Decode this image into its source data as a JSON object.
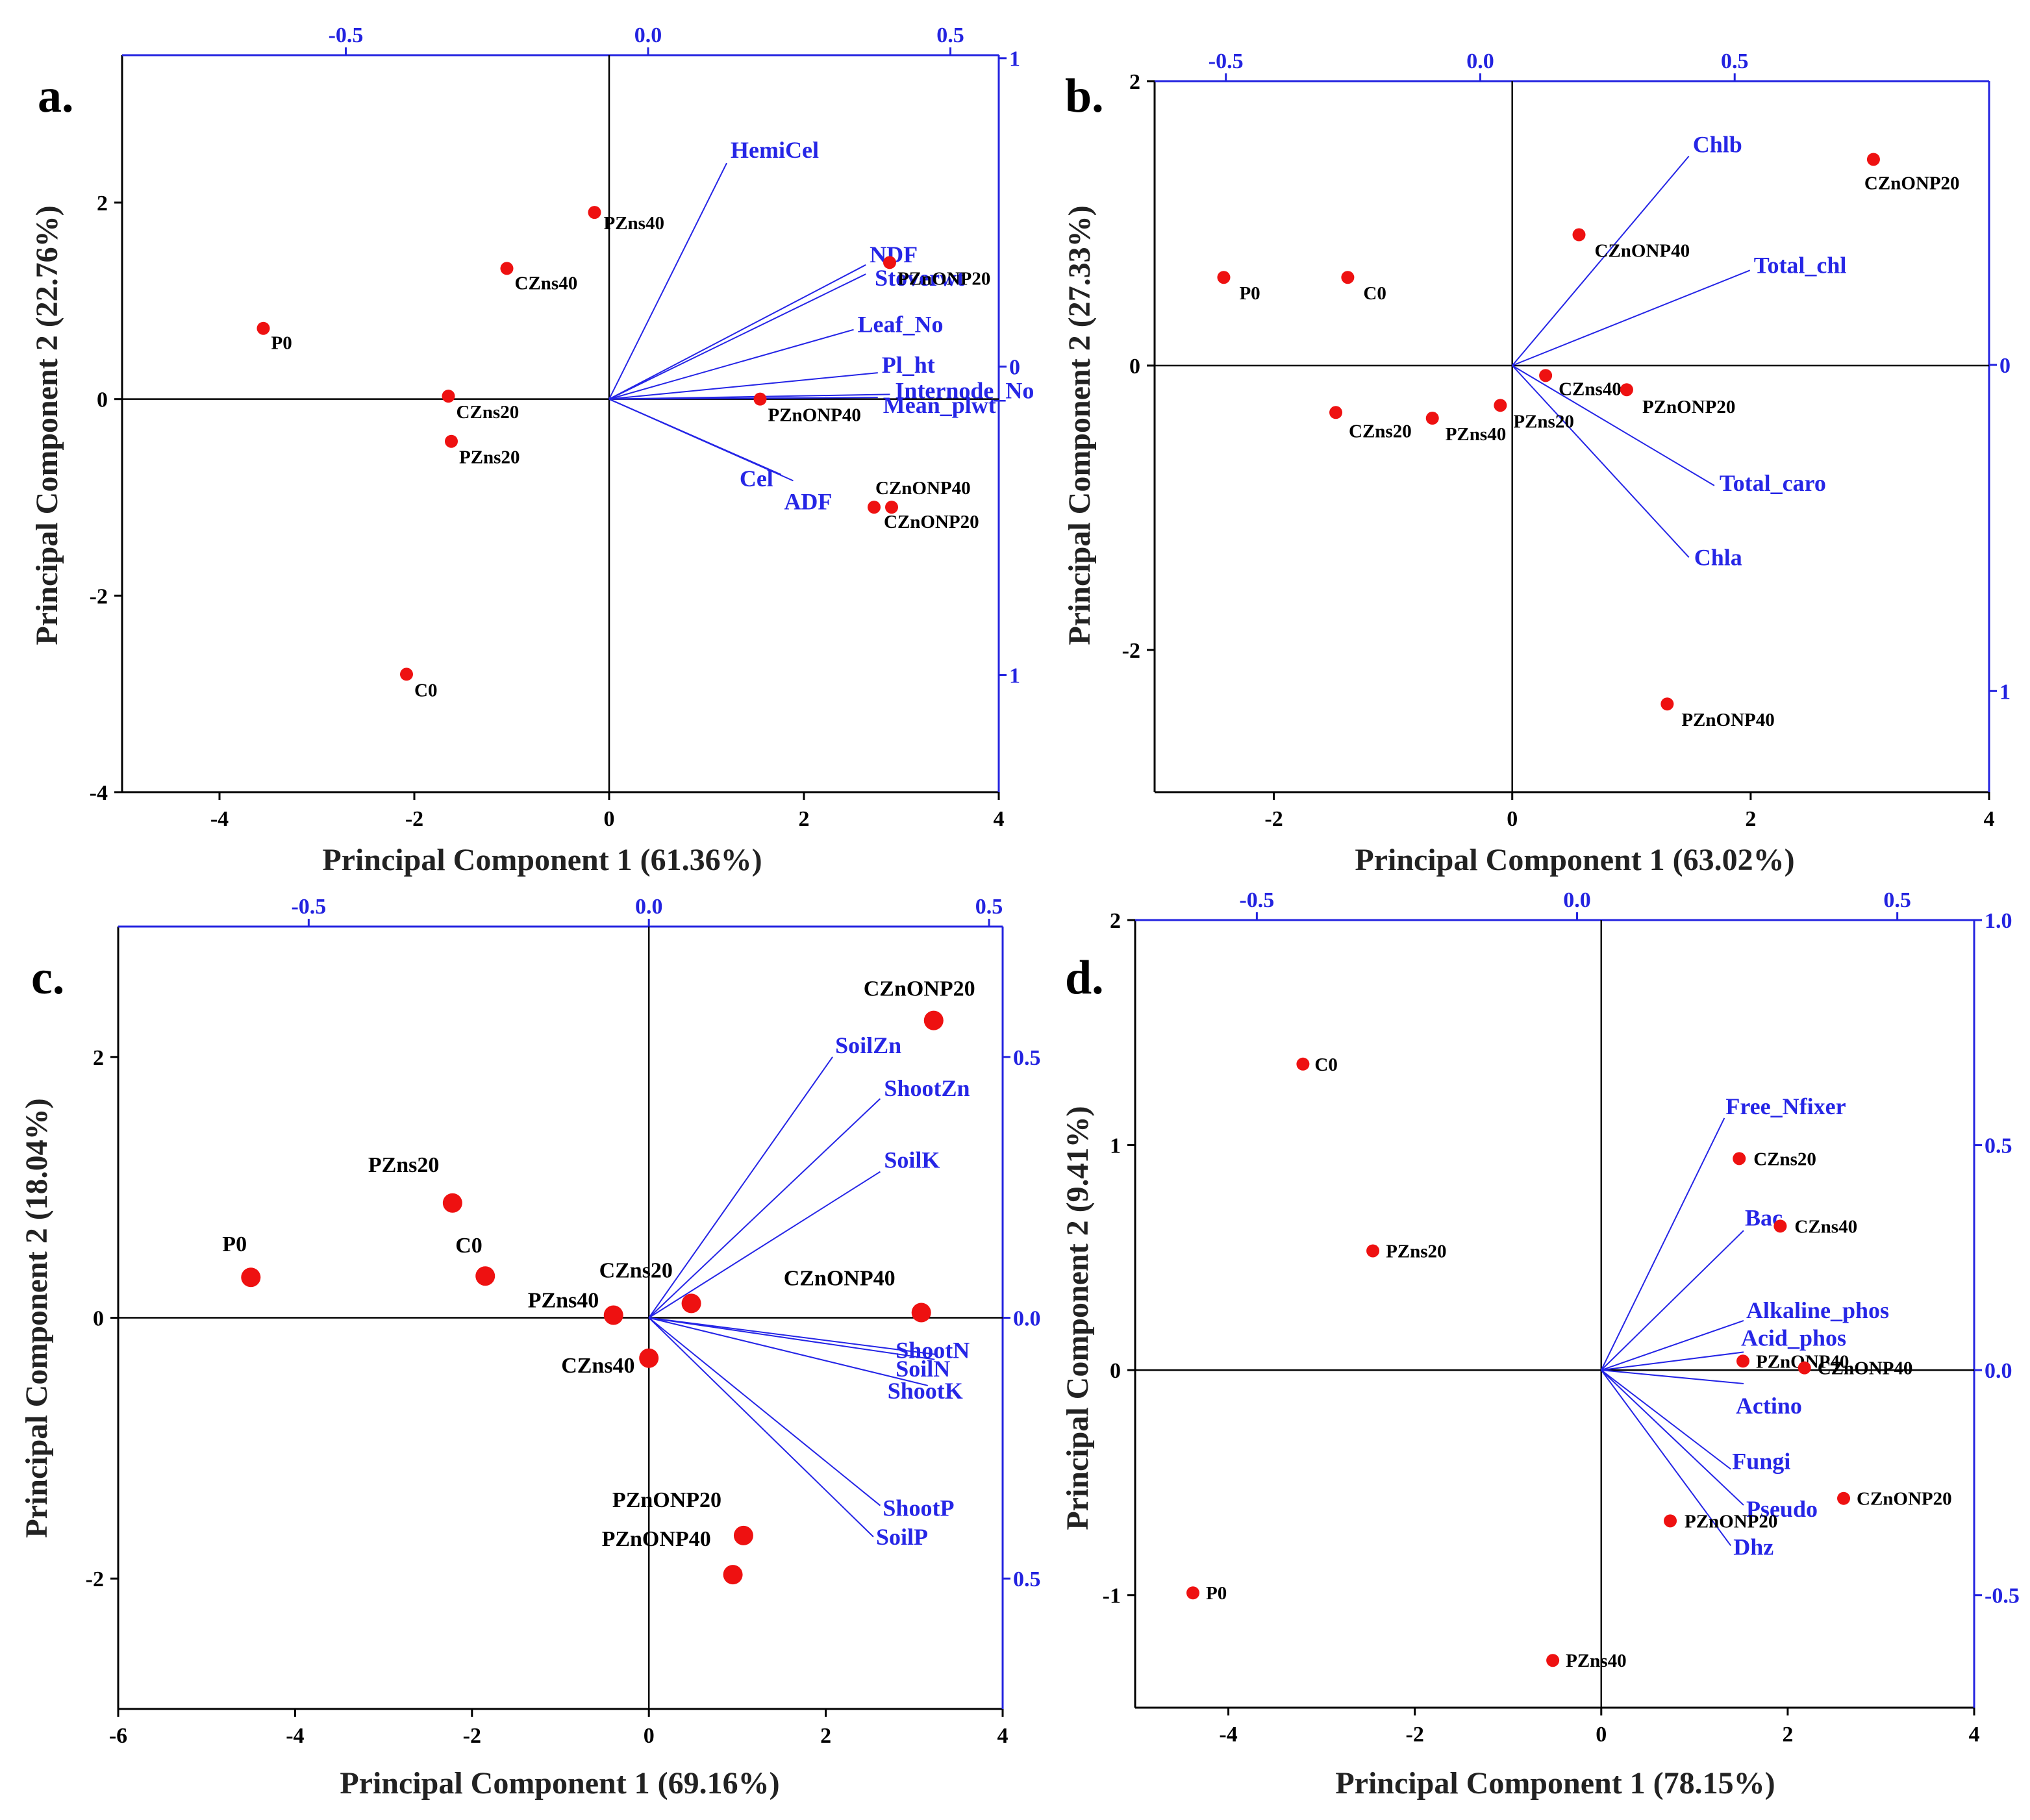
{
  "figure": {
    "colors": {
      "point": "#ee1111",
      "vector": "#2424e6",
      "axis": "#000000",
      "secondary_axis": "#2323e0"
    }
  },
  "chart_data": [
    {
      "type": "scatter",
      "kind": "pca-biplot",
      "panel": "a.",
      "xlabel": "Principal Component 1 (61.36%)",
      "ylabel": "Principal Component 2 (22.76%)",
      "xlim": [
        -5,
        4
      ],
      "ylim": [
        -4,
        3.5
      ],
      "xticks": [
        -4,
        -2,
        0,
        2,
        4
      ],
      "yticks": [
        -4,
        -2,
        0,
        2
      ],
      "top_axis": {
        "lim": [
          -0.87,
          0.58
        ],
        "ticks": [
          -0.5,
          0.0,
          0.5
        ],
        "labels": [
          "-0.5",
          "0.0",
          "0.5"
        ]
      },
      "right_axis": {
        "lim": [
          -1.38,
          1.01
        ],
        "ticks": [
          1,
          0,
          -1
        ],
        "labels": [
          "1",
          "0",
          "1"
        ]
      },
      "point_size": "small",
      "points": [
        {
          "label": "PZns40",
          "x": -0.15,
          "y": 1.9
        },
        {
          "label": "CZns40",
          "x": -1.05,
          "y": 1.33
        },
        {
          "label": "P0",
          "x": -3.55,
          "y": 0.72
        },
        {
          "label": "CZns20",
          "x": -1.65,
          "y": 0.03
        },
        {
          "label": "PZns20",
          "x": -1.62,
          "y": -0.43
        },
        {
          "label": "C0",
          "x": -2.08,
          "y": -2.8
        },
        {
          "label": "PZnONP20",
          "x": 2.88,
          "y": 1.39
        },
        {
          "label": "PZnONP40",
          "x": 1.55,
          "y": 0.0
        },
        {
          "label": "CZnONP40",
          "x": 2.72,
          "y": -1.1
        },
        {
          "label": "CZnONP20",
          "x": 2.9,
          "y": -1.1
        }
      ],
      "loadings": [
        {
          "label": "HemiCel",
          "x": 0.13,
          "y": 0.66
        },
        {
          "label": "NDF",
          "x": 0.36,
          "y": 0.33
        },
        {
          "label": "Stoverwt",
          "x": 0.36,
          "y": 0.3
        },
        {
          "label": "Leaf_No",
          "x": 0.34,
          "y": 0.12
        },
        {
          "label": "Pl_ht",
          "x": 0.38,
          "y": -0.02
        },
        {
          "label": "Internode_No",
          "x": 0.4,
          "y": -0.09
        },
        {
          "label": "Mean_plwt",
          "x": 0.38,
          "y": -0.1
        },
        {
          "label": "Cel",
          "x": 0.22,
          "y": -0.35
        },
        {
          "label": "ADF",
          "x": 0.24,
          "y": -0.37
        }
      ]
    },
    {
      "type": "scatter",
      "kind": "pca-biplot",
      "panel": "b.",
      "xlabel": "Principal Component 1 (63.02%)",
      "ylabel": "Principal Component 2 (27.33%)",
      "xlim": [
        -3,
        4
      ],
      "ylim": [
        -3,
        2
      ],
      "xticks": [
        -2,
        0,
        2,
        4
      ],
      "yticks": [
        -2,
        0,
        2
      ],
      "top_axis": {
        "lim": [
          -0.64,
          1.0
        ],
        "ticks": [
          -0.5,
          0.0,
          0.5
        ],
        "labels": [
          "-0.5",
          "0.0",
          "0.5"
        ]
      },
      "right_axis": {
        "lim": [
          -1.31,
          0.87
        ],
        "ticks": [
          0,
          -1
        ],
        "labels": [
          "0",
          "1"
        ]
      },
      "point_size": "small",
      "points": [
        {
          "label": "CZnONP20",
          "x": 3.03,
          "y": 1.45
        },
        {
          "label": "CZnONP40",
          "x": 0.56,
          "y": 0.92
        },
        {
          "label": "P0",
          "x": -2.42,
          "y": 0.62
        },
        {
          "label": "C0",
          "x": -1.38,
          "y": 0.62
        },
        {
          "label": "CZns40",
          "x": 0.28,
          "y": -0.07
        },
        {
          "label": "PZnONP20",
          "x": 0.96,
          "y": -0.17
        },
        {
          "label": "PZns20",
          "x": -0.1,
          "y": -0.28
        },
        {
          "label": "CZns20",
          "x": -1.48,
          "y": -0.33
        },
        {
          "label": "PZns40",
          "x": -0.67,
          "y": -0.37
        },
        {
          "label": "PZnONP40",
          "x": 1.3,
          "y": -2.38
        }
      ],
      "loadings": [
        {
          "label": "Chlb",
          "x": 0.41,
          "y": 0.64
        },
        {
          "label": "Total_chl",
          "x": 0.53,
          "y": 0.29
        },
        {
          "label": "Total_caro",
          "x": 0.46,
          "y": -0.37
        },
        {
          "label": "Chla",
          "x": 0.41,
          "y": -0.59
        }
      ]
    },
    {
      "type": "scatter",
      "kind": "pca-biplot",
      "panel": "c.",
      "xlabel": "Principal Component 1 (69.16%)",
      "ylabel": "Principal Component 2 (18.04%)",
      "xlim": [
        -6,
        4
      ],
      "ylim": [
        -3,
        3
      ],
      "xticks": [
        -6,
        -4,
        -2,
        0,
        2,
        4
      ],
      "yticks": [
        -2,
        0,
        2
      ],
      "top_axis": {
        "lim": [
          -0.78,
          0.52
        ],
        "ticks": [
          -0.5,
          0.0,
          0.5
        ],
        "labels": [
          "-0.5",
          "0.0",
          "0.5"
        ]
      },
      "right_axis": {
        "lim": [
          -0.75,
          0.75
        ],
        "ticks": [
          0.5,
          0.0,
          -0.5
        ],
        "labels": [
          "0.5",
          "0.0",
          "0.5"
        ]
      },
      "point_size": "large",
      "points": [
        {
          "label": "CZnONP20",
          "x": 3.22,
          "y": 2.28
        },
        {
          "label": "PZns20",
          "x": -2.22,
          "y": 0.88
        },
        {
          "label": "P0",
          "x": -4.5,
          "y": 0.31
        },
        {
          "label": "C0",
          "x": -1.85,
          "y": 0.32
        },
        {
          "label": "PZns40",
          "x": -0.4,
          "y": 0.02
        },
        {
          "label": "CZns20",
          "x": 0.48,
          "y": 0.11
        },
        {
          "label": "CZns40",
          "x": 0.0,
          "y": -0.31
        },
        {
          "label": "CZnONP40",
          "x": 3.08,
          "y": 0.04
        },
        {
          "label": "PZnONP20",
          "x": 1.07,
          "y": -1.67
        },
        {
          "label": "PZnONP40",
          "x": 0.95,
          "y": -1.97
        }
      ],
      "loadings": [
        {
          "label": "SoilZn",
          "x": 0.27,
          "y": 0.5
        },
        {
          "label": "ShootZn",
          "x": 0.34,
          "y": 0.42
        },
        {
          "label": "SoilK",
          "x": 0.34,
          "y": 0.28
        },
        {
          "label": "ShootN",
          "x": 0.42,
          "y": -0.07
        },
        {
          "label": "SoilN",
          "x": 0.42,
          "y": -0.08
        },
        {
          "label": "ShootK",
          "x": 0.41,
          "y": -0.13
        },
        {
          "label": "ShootP",
          "x": 0.34,
          "y": -0.36
        },
        {
          "label": "SoilP",
          "x": 0.33,
          "y": -0.42
        }
      ]
    },
    {
      "type": "scatter",
      "kind": "pca-biplot",
      "panel": "d.",
      "xlabel": "Principal Component 1 (78.15%)",
      "ylabel": "Principal Component 2 (9.41%)",
      "xlim": [
        -5,
        4
      ],
      "ylim": [
        -1.5,
        2
      ],
      "xticks": [
        -4,
        -2,
        0,
        2,
        4
      ],
      "yticks": [
        -1,
        0,
        1,
        2
      ],
      "top_axis": {
        "lim": [
          -0.69,
          0.62
        ],
        "ticks": [
          -0.5,
          0.0,
          0.5
        ],
        "labels": [
          "-0.5",
          "0.0",
          "0.5"
        ]
      },
      "right_axis": {
        "lim": [
          -0.75,
          1.0
        ],
        "ticks": [
          1.0,
          0.5,
          0.0,
          -0.5
        ],
        "labels": [
          "1.0",
          "0.5",
          "0.0",
          "-0.5"
        ]
      },
      "point_size": "small",
      "points": [
        {
          "label": "C0",
          "x": -3.2,
          "y": 1.36
        },
        {
          "label": "PZns20",
          "x": -2.45,
          "y": 0.53
        },
        {
          "label": "CZns20",
          "x": 1.48,
          "y": 0.94
        },
        {
          "label": "CZns40",
          "x": 1.92,
          "y": 0.64
        },
        {
          "label": "PZnONP40",
          "x": 1.52,
          "y": 0.04
        },
        {
          "label": "CZnONP40",
          "x": 2.18,
          "y": 0.01
        },
        {
          "label": "CZnONP20",
          "x": 2.6,
          "y": -0.57
        },
        {
          "label": "PZnONP20",
          "x": 0.74,
          "y": -0.67
        },
        {
          "label": "P0",
          "x": -4.38,
          "y": -0.99
        },
        {
          "label": "PZns40",
          "x": -0.52,
          "y": -1.29
        }
      ],
      "loadings": [
        {
          "label": "Free_Nfixer",
          "x": 0.23,
          "y": 0.56
        },
        {
          "label": "Bac",
          "x": 0.26,
          "y": 0.31
        },
        {
          "label": "Alkaline_phos",
          "x": 0.26,
          "y": 0.11
        },
        {
          "label": "Acid_phos",
          "x": 0.26,
          "y": 0.04
        },
        {
          "label": "Actino",
          "x": 0.26,
          "y": -0.03
        },
        {
          "label": "Fungi",
          "x": 0.24,
          "y": -0.22
        },
        {
          "label": "Pseudo",
          "x": 0.26,
          "y": -0.3
        },
        {
          "label": "Dhz",
          "x": 0.24,
          "y": -0.39
        }
      ]
    }
  ]
}
